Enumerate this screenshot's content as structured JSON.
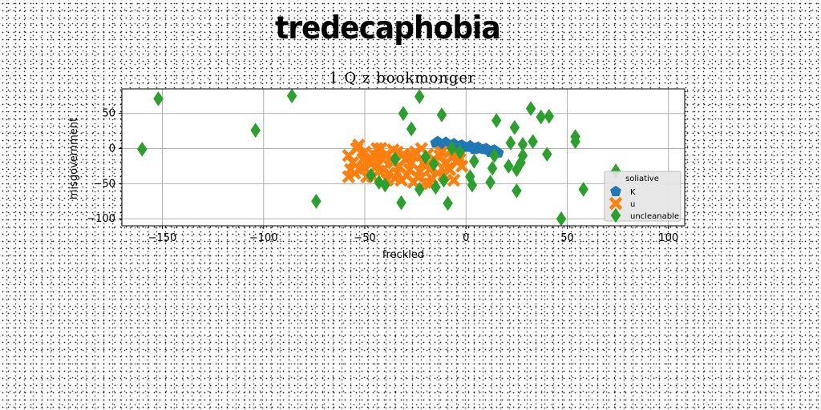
{
  "page_title": "tredecaphobia",
  "chart_data": {
    "type": "scatter",
    "title": "1 Q z bookmonger",
    "xlabel": "freckled",
    "ylabel": "misgovernment",
    "xlim": [
      -170,
      108
    ],
    "ylim": [
      -110,
      85
    ],
    "xticks": [
      -150,
      -100,
      -50,
      0,
      50,
      100
    ],
    "yticks": [
      -100,
      -50,
      0,
      50
    ],
    "grid": true,
    "legend": {
      "title": "soliative",
      "position": "lower-right"
    },
    "colors": {
      "K": "#1f77b4",
      "u": "#ff7f0e",
      "uncleanable": "#2ca02c"
    },
    "series": [
      {
        "name": "K",
        "marker": "pentagon",
        "x": [
          -15,
          -13,
          -11,
          -9,
          -7,
          -5,
          -3,
          -1,
          1,
          3,
          5,
          7,
          9,
          11,
          13,
          15,
          -14,
          -10,
          -6,
          -2,
          2,
          6,
          10,
          14,
          -12,
          -4,
          4,
          12,
          16
        ],
        "y": [
          8,
          7,
          6,
          6,
          5,
          4,
          4,
          3,
          2,
          2,
          1,
          0,
          -1,
          -2,
          -3,
          -4,
          10,
          9,
          7,
          5,
          4,
          2,
          0,
          -2,
          5,
          1,
          -1,
          -5,
          -6
        ]
      },
      {
        "name": "u",
        "marker": "x",
        "x": [
          -58,
          -56,
          -54,
          -52,
          -50,
          -48,
          -46,
          -44,
          -42,
          -40,
          -38,
          -36,
          -34,
          -32,
          -30,
          -28,
          -26,
          -24,
          -22,
          -20,
          -18,
          -16,
          -14,
          -12,
          -10,
          -8,
          -6,
          -4,
          -2,
          -57,
          -53,
          -49,
          -45,
          -41,
          -37,
          -33,
          -29,
          -25,
          -21,
          -17,
          -13,
          -9,
          -5,
          -55,
          -47,
          -39,
          -31,
          -23,
          -15,
          -7,
          -51,
          -43,
          -35,
          -27,
          -19,
          -11,
          -3,
          -58,
          -50,
          -42,
          -34,
          -26,
          -18,
          -10,
          -36,
          -28,
          -20,
          -44
        ],
        "y": [
          -10,
          -20,
          0,
          -30,
          -5,
          -15,
          -40,
          -25,
          0,
          -10,
          -35,
          -20,
          -5,
          -45,
          -15,
          -30,
          -10,
          -40,
          0,
          -25,
          -50,
          -15,
          -35,
          -5,
          -20,
          -30,
          -45,
          -10,
          -25,
          -30,
          5,
          -40,
          -10,
          -30,
          -15,
          -25,
          -38,
          -5,
          -20,
          -42,
          -10,
          -28,
          -18,
          -35,
          -22,
          -45,
          -8,
          -32,
          -18,
          -12,
          -15,
          -32,
          -42,
          -20,
          -8,
          -38,
          -15,
          -40,
          -28,
          -12,
          -35,
          -48,
          -30,
          -22,
          -2,
          -12,
          -48,
          0
        ]
      },
      {
        "name": "uncleanable",
        "marker": "thin_diamond",
        "x": [
          -160,
          -152,
          -104,
          -86,
          -74,
          -47,
          -43,
          -40,
          -35,
          -32,
          -31,
          -27,
          -23,
          -23,
          -20,
          -16,
          -15,
          -12,
          -11,
          -9,
          -7,
          -3,
          2,
          3,
          4,
          12,
          13,
          14,
          15,
          21,
          22,
          24,
          25,
          25,
          27,
          28,
          28,
          32,
          33,
          37,
          40,
          41,
          47,
          54,
          54,
          58,
          74
        ],
        "y": [
          -1,
          71,
          26,
          75,
          -75,
          -38,
          -48,
          -52,
          -15,
          -77,
          50,
          28,
          -58,
          74,
          -12,
          -22,
          -55,
          48,
          -45,
          -78,
          0,
          -5,
          -40,
          -52,
          -18,
          -48,
          -28,
          -10,
          40,
          -25,
          8,
          30,
          -60,
          -30,
          -20,
          -10,
          6,
          57,
          10,
          45,
          -8,
          46,
          -100,
          10,
          17,
          -58,
          -32
        ]
      }
    ]
  }
}
